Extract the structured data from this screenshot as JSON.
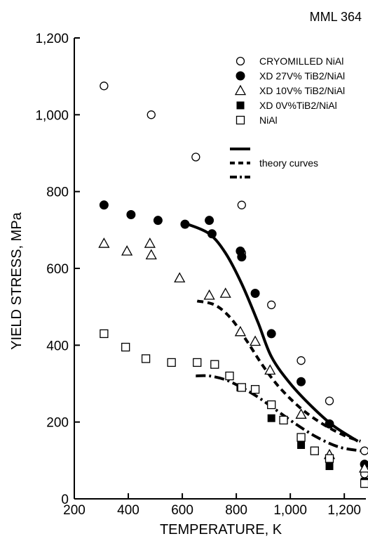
{
  "figure_id": "MML 364",
  "chart_data": {
    "type": "scatter",
    "xlabel": "TEMPERATURE,  K",
    "ylabel": "YIELD STRESS,  MPa",
    "xlim": [
      200,
      1280
    ],
    "ylim": [
      0,
      1200
    ],
    "xticks": [
      200,
      400,
      600,
      800,
      1000,
      1200
    ],
    "xtick_labels": [
      "200",
      "400",
      "600",
      "800",
      "1,000",
      "1,200"
    ],
    "yticks": [
      0,
      200,
      400,
      600,
      800,
      1000,
      1200
    ],
    "ytick_labels": [
      "0",
      "200",
      "400",
      "600",
      "800",
      "1,000",
      "1,200"
    ],
    "grid": false,
    "legend_position": "top-right",
    "series": [
      {
        "name": "CRYOMILLED NiAl",
        "marker": "open-circle",
        "points": [
          [
            310,
            1075
          ],
          [
            485,
            1000
          ],
          [
            650,
            890
          ],
          [
            820,
            765
          ],
          [
            820,
            640
          ],
          [
            930,
            505
          ],
          [
            1040,
            360
          ],
          [
            1145,
            255
          ],
          [
            1275,
            125
          ],
          [
            1275,
            65
          ]
        ]
      },
      {
        "name": "XD 27V% TiB2/NiAl",
        "marker": "filled-circle",
        "points": [
          [
            310,
            765
          ],
          [
            410,
            740
          ],
          [
            510,
            725
          ],
          [
            610,
            715
          ],
          [
            700,
            725
          ],
          [
            710,
            690
          ],
          [
            815,
            645
          ],
          [
            820,
            630
          ],
          [
            870,
            535
          ],
          [
            930,
            430
          ],
          [
            1040,
            305
          ],
          [
            1145,
            195
          ],
          [
            1275,
            90
          ]
        ]
      },
      {
        "name": "XD 10V% TiB2/NiAl",
        "marker": "open-triangle",
        "points": [
          [
            310,
            665
          ],
          [
            395,
            645
          ],
          [
            480,
            665
          ],
          [
            485,
            635
          ],
          [
            590,
            575
          ],
          [
            700,
            530
          ],
          [
            760,
            535
          ],
          [
            815,
            435
          ],
          [
            870,
            410
          ],
          [
            925,
            335
          ],
          [
            1040,
            220
          ],
          [
            1145,
            115
          ],
          [
            1275,
            80
          ]
        ]
      },
      {
        "name": "XD 0V%TiB2/NiAl",
        "marker": "filled-square",
        "points": [
          [
            815,
            290
          ],
          [
            930,
            210
          ],
          [
            1040,
            140
          ],
          [
            1145,
            85
          ],
          [
            1275,
            45
          ]
        ]
      },
      {
        "name": "NiAl",
        "marker": "open-square",
        "points": [
          [
            310,
            430
          ],
          [
            390,
            395
          ],
          [
            465,
            365
          ],
          [
            560,
            355
          ],
          [
            655,
            355
          ],
          [
            720,
            350
          ],
          [
            775,
            320
          ],
          [
            820,
            290
          ],
          [
            870,
            285
          ],
          [
            930,
            245
          ],
          [
            975,
            205
          ],
          [
            1040,
            160
          ],
          [
            1090,
            125
          ],
          [
            1145,
            105
          ],
          [
            1275,
            40
          ]
        ]
      }
    ],
    "theory_curves": {
      "label": "theory curves",
      "curves": [
        {
          "style": "solid",
          "points": [
            [
              620,
              715
            ],
            [
              700,
              690
            ],
            [
              760,
              640
            ],
            [
              820,
              560
            ],
            [
              880,
              460
            ],
            [
              930,
              370
            ],
            [
              1000,
              300
            ],
            [
              1080,
              240
            ],
            [
              1160,
              190
            ],
            [
              1250,
              150
            ]
          ]
        },
        {
          "style": "dash",
          "points": [
            [
              655,
              515
            ],
            [
              720,
              505
            ],
            [
              780,
              470
            ],
            [
              840,
              410
            ],
            [
              900,
              345
            ],
            [
              960,
              290
            ],
            [
              1040,
              235
            ],
            [
              1120,
              195
            ],
            [
              1200,
              165
            ],
            [
              1260,
              150
            ]
          ]
        },
        {
          "style": "dash-dot",
          "points": [
            [
              650,
              320
            ],
            [
              700,
              320
            ],
            [
              760,
              310
            ],
            [
              820,
              290
            ],
            [
              880,
              265
            ],
            [
              940,
              235
            ],
            [
              1020,
              195
            ],
            [
              1100,
              160
            ],
            [
              1180,
              135
            ],
            [
              1260,
              125
            ]
          ]
        }
      ]
    }
  }
}
